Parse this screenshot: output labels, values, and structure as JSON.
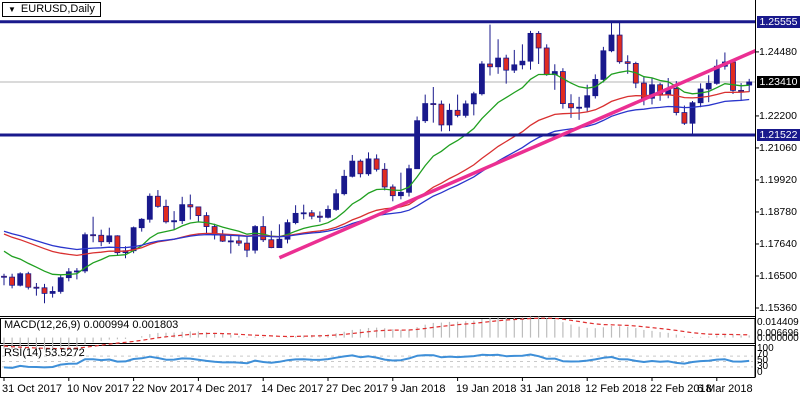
{
  "window": {
    "symbol_label": "EURUSD,Daily",
    "symbol_dropdown_icon": "▼"
  },
  "colors": {
    "navy": "#19198c",
    "bear_red": "#e02b20",
    "ma_green": "#20a020",
    "ma_red": "#d93030",
    "ma_blue": "#2a35cc",
    "trendline_pink": "#eb2f92",
    "current_line_gray": "#b5b5b5",
    "macd_hist_gray": "#bdbdbd",
    "macd_signal_red": "#e03030",
    "rsi_blue": "#3e8fd8",
    "level_dash_gray": "#c9c9c9",
    "border_black": "#000000",
    "badge_text": "#ffffff"
  },
  "chart_data": {
    "type": "candlestick",
    "symbol": "EURUSD",
    "timeframe": "Daily",
    "ylim": [
      1.15075,
      1.2583
    ],
    "price_axis_labels": [
      "1.24480",
      "1.22200",
      "1.21060",
      "1.19920",
      "1.18780",
      "1.17640",
      "1.16500",
      "1.15360"
    ],
    "price_badges": [
      {
        "text": "1.25555",
        "price": 1.25555,
        "style": "navy",
        "name": "resistance-price-badge"
      },
      {
        "text": "1.23410",
        "price": 1.2341,
        "style": "black",
        "name": "current-price-badge"
      },
      {
        "text": "1.21522",
        "price": 1.21522,
        "style": "navy",
        "name": "support-price-badge"
      }
    ],
    "hlines": [
      {
        "price": 1.25555,
        "name": "resistance-line"
      },
      {
        "price": 1.21522,
        "name": "support-line"
      }
    ],
    "current_price": 1.2341,
    "dates": [
      {
        "label": "31 Oct 2017",
        "i": 0
      },
      {
        "label": "10 Nov 2017",
        "i": 8
      },
      {
        "label": "22 Nov 2017",
        "i": 16
      },
      {
        "label": "4 Dec 2017",
        "i": 24
      },
      {
        "label": "14 Dec 2017",
        "i": 32
      },
      {
        "label": "27 Dec 2017",
        "i": 40
      },
      {
        "label": "9 Jan 2018",
        "i": 48
      },
      {
        "label": "19 Jan 2018",
        "i": 56
      },
      {
        "label": "31 Jan 2018",
        "i": 64
      },
      {
        "label": "12 Feb 2018",
        "i": 72
      },
      {
        "label": "22 Feb 2018",
        "i": 80
      },
      {
        "label": "6 Mar 2018",
        "i": 88
      }
    ],
    "candles": [
      [
        1.1649,
        1.1658,
        1.1617,
        1.1646
      ],
      [
        1.1646,
        1.1658,
        1.1606,
        1.1617
      ],
      [
        1.1617,
        1.1663,
        1.1613,
        1.1658
      ],
      [
        1.1658,
        1.1665,
        1.1602,
        1.161
      ],
      [
        1.161,
        1.1625,
        1.158,
        1.1608
      ],
      [
        1.1608,
        1.1622,
        1.1553,
        1.1588
      ],
      [
        1.1588,
        1.1613,
        1.1573,
        1.1595
      ],
      [
        1.1595,
        1.1655,
        1.1587,
        1.1644
      ],
      [
        1.1644,
        1.1678,
        1.1631,
        1.1665
      ],
      [
        1.1665,
        1.1678,
        1.1638,
        1.1668
      ],
      [
        1.1668,
        1.1805,
        1.166,
        1.1797
      ],
      [
        1.1797,
        1.1861,
        1.177,
        1.1795
      ],
      [
        1.1795,
        1.1815,
        1.1756,
        1.1772
      ],
      [
        1.1772,
        1.1822,
        1.1764,
        1.1793
      ],
      [
        1.1793,
        1.1795,
        1.1722,
        1.1733
      ],
      [
        1.1733,
        1.1756,
        1.1713,
        1.174
      ],
      [
        1.174,
        1.1826,
        1.1731,
        1.1822
      ],
      [
        1.1822,
        1.1856,
        1.1808,
        1.1852
      ],
      [
        1.1852,
        1.1944,
        1.184,
        1.1934
      ],
      [
        1.1934,
        1.1956,
        1.1893,
        1.1898
      ],
      [
        1.1898,
        1.1922,
        1.1837,
        1.1843
      ],
      [
        1.1843,
        1.1881,
        1.1816,
        1.1847
      ],
      [
        1.1847,
        1.1932,
        1.1835,
        1.1904
      ],
      [
        1.1904,
        1.194,
        1.1851,
        1.1896
      ],
      [
        1.1896,
        1.1896,
        1.1843,
        1.1865
      ],
      [
        1.1865,
        1.1877,
        1.1801,
        1.1826
      ],
      [
        1.1826,
        1.1836,
        1.178,
        1.1796
      ],
      [
        1.1796,
        1.1814,
        1.1771,
        1.1774
      ],
      [
        1.1774,
        1.1795,
        1.173,
        1.1775
      ],
      [
        1.1775,
        1.1793,
        1.1757,
        1.1767
      ],
      [
        1.1767,
        1.1789,
        1.1717,
        1.1742
      ],
      [
        1.1742,
        1.1831,
        1.173,
        1.1826
      ],
      [
        1.1826,
        1.1863,
        1.1771,
        1.1779
      ],
      [
        1.1779,
        1.1811,
        1.1749,
        1.1751
      ],
      [
        1.1751,
        1.1834,
        1.1751,
        1.1781
      ],
      [
        1.1781,
        1.1851,
        1.1766,
        1.184
      ],
      [
        1.184,
        1.1902,
        1.1834,
        1.1873
      ],
      [
        1.1873,
        1.1904,
        1.1852,
        1.1875
      ],
      [
        1.1875,
        1.1885,
        1.1852,
        1.1863
      ],
      [
        1.1863,
        1.188,
        1.1842,
        1.1859
      ],
      [
        1.1859,
        1.1901,
        1.1855,
        1.1887
      ],
      [
        1.1887,
        1.1959,
        1.1882,
        1.1943
      ],
      [
        1.1943,
        1.2028,
        1.1937,
        1.2005
      ],
      [
        1.2005,
        1.2081,
        1.2001,
        1.2059
      ],
      [
        1.2059,
        1.2065,
        1.2001,
        1.2014
      ],
      [
        1.2014,
        1.209,
        1.2007,
        1.2067
      ],
      [
        1.2067,
        1.2083,
        1.2022,
        1.203
      ],
      [
        1.203,
        1.2052,
        1.1955,
        1.1967
      ],
      [
        1.1967,
        1.1976,
        1.1916,
        1.1936
      ],
      [
        1.1936,
        1.2018,
        1.1923,
        1.1948
      ],
      [
        1.1948,
        1.2046,
        1.1933,
        1.2032
      ],
      [
        1.2032,
        1.2218,
        1.2031,
        1.2203
      ],
      [
        1.2203,
        1.2296,
        1.2195,
        1.2264
      ],
      [
        1.2264,
        1.2323,
        1.2196,
        1.2262
      ],
      [
        1.2262,
        1.2275,
        1.2165,
        1.2188
      ],
      [
        1.2188,
        1.2264,
        1.2166,
        1.224
      ],
      [
        1.224,
        1.2296,
        1.2215,
        1.2222
      ],
      [
        1.2222,
        1.2275,
        1.2214,
        1.2263
      ],
      [
        1.2263,
        1.2306,
        1.2222,
        1.2299
      ],
      [
        1.2299,
        1.2415,
        1.2293,
        1.2405
      ],
      [
        1.2405,
        1.2545,
        1.2364,
        1.2395
      ],
      [
        1.2395,
        1.2493,
        1.237,
        1.2426
      ],
      [
        1.2426,
        1.2438,
        1.2335,
        1.2383
      ],
      [
        1.2383,
        1.2455,
        1.2373,
        1.2402
      ],
      [
        1.2402,
        1.2475,
        1.2386,
        1.2415
      ],
      [
        1.2415,
        1.2523,
        1.2385,
        1.2514
      ],
      [
        1.2514,
        1.2522,
        1.2405,
        1.2462
      ],
      [
        1.2462,
        1.2475,
        1.2363,
        1.2367
      ],
      [
        1.2367,
        1.2404,
        1.2313,
        1.2378
      ],
      [
        1.2378,
        1.239,
        1.2246,
        1.2264
      ],
      [
        1.2264,
        1.2297,
        1.2213,
        1.2249
      ],
      [
        1.2249,
        1.2288,
        1.2206,
        1.2251
      ],
      [
        1.2251,
        1.2331,
        1.2236,
        1.2292
      ],
      [
        1.2292,
        1.2368,
        1.2282,
        1.235
      ],
      [
        1.235,
        1.2466,
        1.2339,
        1.2452
      ],
      [
        1.2452,
        1.2555,
        1.2447,
        1.2508
      ],
      [
        1.2508,
        1.2556,
        1.2406,
        1.2413
      ],
      [
        1.2413,
        1.2436,
        1.237,
        1.2407
      ],
      [
        1.2407,
        1.2413,
        1.2319,
        1.2337
      ],
      [
        1.2337,
        1.236,
        1.2258,
        1.2283
      ],
      [
        1.2283,
        1.2357,
        1.2261,
        1.2331
      ],
      [
        1.2331,
        1.2338,
        1.2274,
        1.2295
      ],
      [
        1.2295,
        1.2355,
        1.2283,
        1.2318
      ],
      [
        1.2318,
        1.2344,
        1.2222,
        1.2232
      ],
      [
        1.2232,
        1.2257,
        1.2188,
        1.2194
      ],
      [
        1.2194,
        1.2273,
        1.2154,
        1.2267
      ],
      [
        1.2267,
        1.2336,
        1.2251,
        1.2316
      ],
      [
        1.2316,
        1.2365,
        1.2269,
        1.2336
      ],
      [
        1.2336,
        1.2421,
        1.2331,
        1.2397
      ],
      [
        1.2397,
        1.2446,
        1.2385,
        1.2412
      ],
      [
        1.2412,
        1.2416,
        1.2298,
        1.2311
      ],
      [
        1.2311,
        1.2337,
        1.2273,
        1.2307
      ],
      [
        1.233,
        1.2352,
        1.2305,
        1.2341
      ]
    ],
    "prehistory_closes": [
      1.192,
      1.1936,
      1.196,
      1.198,
      1.2005,
      1.1975,
      1.1955,
      1.192,
      1.1886,
      1.191,
      1.1885,
      1.186,
      1.1836,
      1.181,
      1.1785,
      1.1852,
      1.1782,
      1.1756,
      1.1764,
      1.1757,
      1.1694,
      1.1627,
      1.1631,
      1.1646
    ],
    "moving_averages": [
      {
        "name": "ma-fast-green",
        "period": 12,
        "seed": 1.1755,
        "color_key": "ma_green"
      },
      {
        "name": "ma-mid-red",
        "period": 30,
        "seed": 1.181,
        "color_key": "ma_red"
      },
      {
        "name": "ma-slow-blue",
        "period": 40,
        "seed": 1.1818,
        "color_key": "ma_blue"
      }
    ],
    "trendline": {
      "i1": 34,
      "p1": 1.1715,
      "i2": 93,
      "p2": 1.2455
    },
    "macd": {
      "label": "MACD(12,26,9)",
      "values_text": "0.000994 0.001803",
      "fast": 12,
      "slow": 26,
      "signal": 9,
      "ylim": [
        -0.0028,
        0.0112
      ],
      "axis_labels": [
        "0.014409",
        "0.006696",
        "0.000000"
      ]
    },
    "rsi": {
      "label": "RSI(14)",
      "value_text": "53.5272",
      "period": 14,
      "levels": [
        70,
        50,
        30
      ],
      "axis_labels": [
        "100",
        "70",
        "50",
        "30",
        "0"
      ],
      "ylim": [
        0,
        100
      ]
    }
  }
}
